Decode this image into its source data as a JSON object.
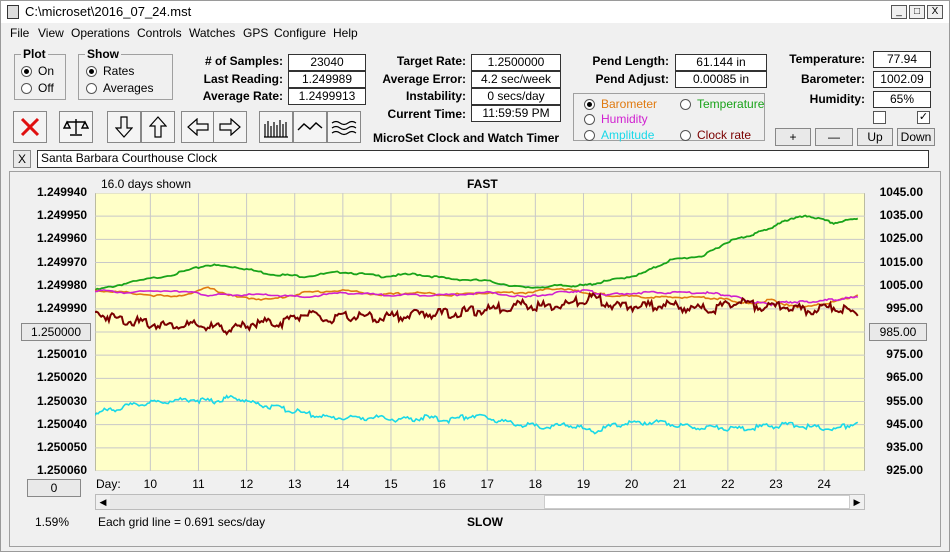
{
  "window": {
    "title": "C:\\microset\\2016_07_24.mst",
    "min": "_",
    "max": "□",
    "close": "X"
  },
  "menu": [
    "File",
    "View",
    "Operations",
    "Controls",
    "Watches",
    "GPS",
    "Configure",
    "Help"
  ],
  "plot_group": {
    "title": "Plot",
    "options": [
      "On",
      "Off"
    ],
    "selected": "On"
  },
  "show_group": {
    "title": "Show",
    "options": [
      "Rates",
      "Averages"
    ],
    "selected": "Rates"
  },
  "stats": {
    "samples_label": "# of Samples:",
    "samples": "23040",
    "last_reading_label": "Last Reading:",
    "last_reading": "1.249989",
    "average_rate_label": "Average Rate:",
    "average_rate": "1.2499913",
    "target_rate_label": "Target Rate:",
    "target_rate": "1.2500000",
    "average_error_label": "Average Error:",
    "average_error": "4.2 sec/week",
    "instability_label": "Instability:",
    "instability": "0 secs/day",
    "current_time_label": "Current Time:",
    "current_time": "11:59:59 PM",
    "pend_length_label": "Pend Length:",
    "pend_length": "61.144 in",
    "pend_adjust_label": "Pend Adjust:",
    "pend_adjust": "0.00085 in",
    "temperature_label": "Temperature:",
    "temperature": "77.94",
    "barometer_label": "Barometer:",
    "barometer": "1002.09",
    "humidity_label": "Humidity:",
    "humidity": "65%"
  },
  "app_caption": "MicroSet Clock and Watch Timer",
  "sensor_select": {
    "options": [
      {
        "label": "Barometer",
        "color": "#e07a10",
        "selected": true
      },
      {
        "label": "Temperature",
        "color": "#19a319",
        "selected": false
      },
      {
        "label": "Humidity",
        "color": "#d020d0",
        "selected": false
      },
      {
        "label": "Amplitude",
        "color": "#19d8e8",
        "selected": false
      },
      {
        "label": "Clock rate",
        "color": "#7a0000",
        "selected": false
      }
    ]
  },
  "scale_buttons": {
    "plus": "+",
    "minus": "—",
    "up": "Up",
    "down": "Down"
  },
  "check_states": {
    "left": false,
    "right": true
  },
  "clock_name": "Santa Barbara Courthouse Clock",
  "clear_label": "X",
  "toolbar_icons": [
    "delete-x-icon",
    "balance-scale-icon",
    "arrow-down-icon",
    "arrow-up-icon",
    "arrow-left-icon",
    "arrow-right-icon",
    "bar-graph-icon",
    "wave-icon",
    "multi-wave-icon"
  ],
  "chart_info": {
    "days_shown": "16.0 days shown",
    "top_label": "FAST",
    "bottom_label": "SLOW",
    "grid_note": "Each grid line = 0.691 secs/day",
    "percent": "1.59%",
    "left_ref_button": "1.250000",
    "right_ref_button": "985.00",
    "left_bottom_button": "0",
    "day_label": "Day:"
  },
  "chart_data": {
    "type": "line",
    "x_label": "Day:",
    "x_ticks": [
      10,
      11,
      12,
      13,
      14,
      15,
      16,
      17,
      18,
      19,
      20,
      21,
      22,
      23,
      24
    ],
    "xlim": [
      8.85,
      24.85
    ],
    "left_axis": {
      "ticks": [
        "1.249940",
        "1.249950",
        "1.249960",
        "1.249970",
        "1.249980",
        "1.249990",
        "1.250000",
        "1.250010",
        "1.250020",
        "1.250030",
        "1.250040",
        "1.250050",
        "1.250060"
      ],
      "range": [
        1.24994,
        1.25006
      ],
      "inverted": true
    },
    "right_axis": {
      "ticks": [
        "1045.00",
        "1035.00",
        "1025.00",
        "1015.00",
        "1005.00",
        "995.00",
        "985.00",
        "975.00",
        "965.00",
        "955.00",
        "945.00",
        "935.00",
        "925.00"
      ],
      "range": [
        925,
        1045
      ]
    },
    "grid": true,
    "background": "#ffffc8",
    "series": [
      {
        "name": "Temperature",
        "color": "#19a319",
        "width": 1.8,
        "x": [
          8.85,
          9.5,
          10.5,
          11.2,
          11.8,
          12.5,
          13.2,
          14.0,
          14.8,
          15.5,
          16.2,
          17.0,
          17.8,
          18.5,
          19.0,
          19.5,
          20.2,
          20.8,
          21.5,
          22.0,
          22.5,
          22.9,
          23.3,
          23.7,
          24.2,
          24.7
        ],
        "y": [
          1003,
          1006,
          1010,
          1014,
          1013,
          1010,
          1009,
          1011,
          1009,
          1010,
          1008,
          1007,
          1004,
          1005,
          1005,
          1007,
          1010,
          1016,
          1018,
          1024,
          1027,
          1030,
          1034,
          1035,
          1032,
          1034
        ]
      },
      {
        "name": "Barometer",
        "color": "#e07a10",
        "width": 1.6,
        "x": [
          8.85,
          9.5,
          10.5,
          11.2,
          11.8,
          12.5,
          13.2,
          14.0,
          14.8,
          15.5,
          16.2,
          17.0,
          17.8,
          18.5,
          19.0,
          19.5,
          20.2,
          20.8,
          21.5,
          22.0,
          22.5,
          22.9,
          23.3,
          23.7,
          24.2,
          24.7
        ],
        "y": [
          1003,
          1002,
          1000,
          1004,
          1000,
          999,
          1002,
          1003,
          1001,
          1002,
          1001,
          1002,
          1002,
          1004,
          1002,
          1001,
          1000,
          1000,
          1000,
          999,
          997,
          999,
          996,
          996,
          998,
          1001
        ]
      },
      {
        "name": "Humidity",
        "color": "#d020d0",
        "width": 1.6,
        "x": [
          8.85,
          9.5,
          10.5,
          11.2,
          11.8,
          12.5,
          13.2,
          14.0,
          14.8,
          15.5,
          16.2,
          17.0,
          17.8,
          18.5,
          19.0,
          19.5,
          20.2,
          20.8,
          21.5,
          22.0,
          22.5,
          22.9,
          23.3,
          23.7,
          24.2,
          24.7
        ],
        "y": [
          1003,
          1002,
          1003,
          1001,
          1001,
          1001,
          1000,
          1002,
          1001,
          1001,
          1001,
          1002,
          1000,
          1002,
          1003,
          1001,
          1002,
          1002,
          1002,
          1001,
          998,
          997,
          998,
          998,
          999,
          1000
        ]
      },
      {
        "name": "Clock rate",
        "color": "#7a0000",
        "width": 2.0,
        "x": [
          8.85,
          9.3,
          9.8,
          10.3,
          10.8,
          11.3,
          11.7,
          12.2,
          12.7,
          13.2,
          13.7,
          14.2,
          14.7,
          15.2,
          15.7,
          16.2,
          16.7,
          17.2,
          17.7,
          18.2,
          18.7,
          19.2,
          19.7,
          20.2,
          20.7,
          21.2,
          21.7,
          22.2,
          22.7,
          23.2,
          23.7,
          24.2,
          24.7
        ],
        "y": [
          993,
          991,
          989,
          988,
          988,
          987,
          986,
          989,
          989,
          993,
          990,
          992,
          991,
          992,
          993,
          993,
          994,
          995,
          997,
          996,
          997,
          1000,
          996,
          996,
          997,
          995,
          995,
          998,
          996,
          996,
          994,
          996,
          992
        ]
      },
      {
        "name": "Amplitude",
        "color": "#19d8e8",
        "width": 1.6,
        "x": [
          8.85,
          9.3,
          9.8,
          10.3,
          10.8,
          11.3,
          11.7,
          12.2,
          12.7,
          13.2,
          13.7,
          14.2,
          14.7,
          15.2,
          15.7,
          16.2,
          16.7,
          17.2,
          17.7,
          18.2,
          18.7,
          19.2,
          19.7,
          20.2,
          20.7,
          21.2,
          21.7,
          22.2,
          22.7,
          23.2,
          23.7,
          24.2,
          24.7
        ],
        "y": [
          950,
          952,
          954,
          955,
          956,
          955,
          957,
          954,
          952,
          950,
          948,
          948,
          948,
          947,
          948,
          947,
          949,
          947,
          945,
          944,
          945,
          942,
          945,
          946,
          946,
          944,
          944,
          943,
          944,
          945,
          944,
          943,
          946
        ]
      }
    ]
  }
}
